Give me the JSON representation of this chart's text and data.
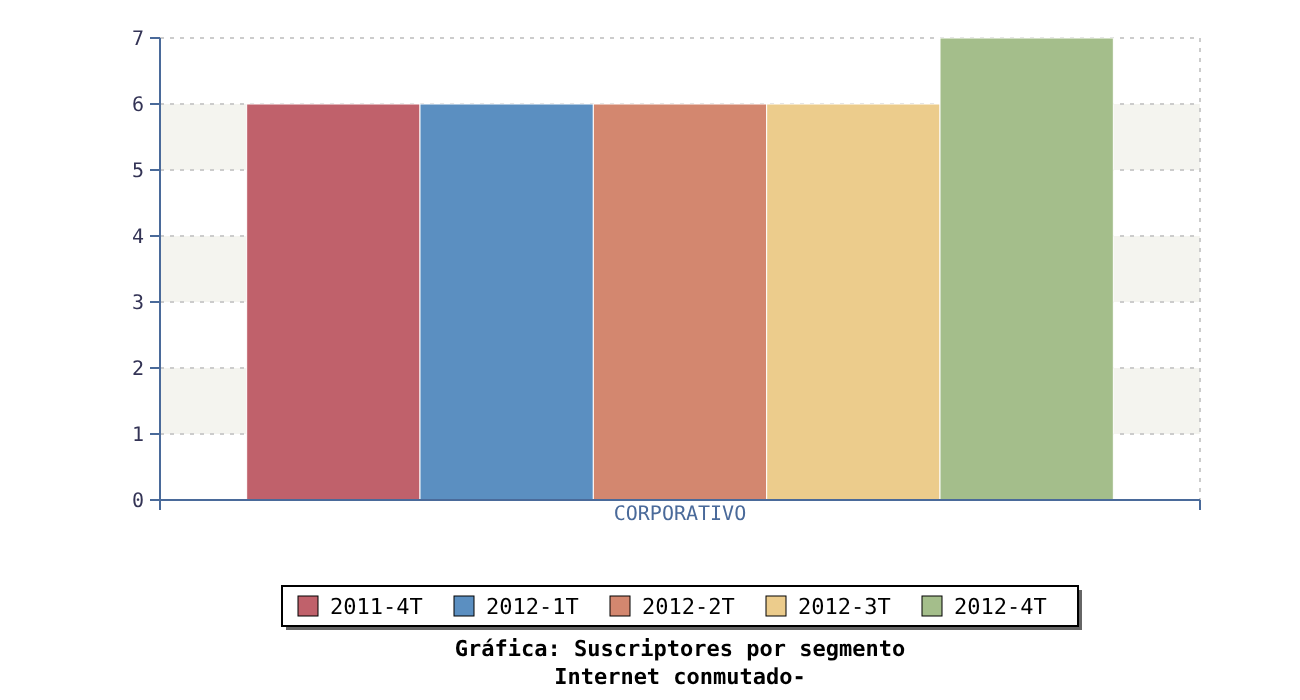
{
  "chart_data": {
    "type": "bar",
    "title": "Gráfica: Suscriptores por segmento",
    "subtitle": "Internet conmutado-",
    "categories": [
      "CORPORATIVO"
    ],
    "series": [
      {
        "name": "2011-4T",
        "color": "#c0616b",
        "values": [
          6
        ]
      },
      {
        "name": "2012-1T",
        "color": "#5b8fc1",
        "values": [
          6
        ]
      },
      {
        "name": "2012-2T",
        "color": "#d3876f",
        "values": [
          6
        ]
      },
      {
        "name": "2012-3T",
        "color": "#eccc8c",
        "values": [
          6
        ]
      },
      {
        "name": "2012-4T",
        "color": "#a4be8b",
        "values": [
          7
        ]
      }
    ],
    "ylim": [
      0,
      7
    ],
    "yticks": [
      0,
      1,
      2,
      3,
      4,
      5,
      6,
      7
    ],
    "grid": "y",
    "legend": "bottom"
  }
}
